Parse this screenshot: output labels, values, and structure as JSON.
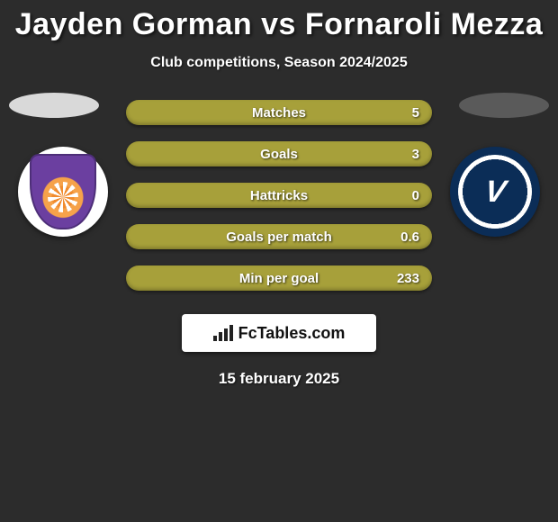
{
  "title": "Jayden Gorman vs Fornaroli Mezza",
  "subtitle": "Club competitions, Season 2024/2025",
  "date": "15 february 2025",
  "footer_brand": "FcTables.com",
  "colors": {
    "background": "#2c2c2c",
    "bar": "#a7a03a",
    "text": "#ffffff",
    "left_silhouette": "#d9d9d9",
    "right_silhouette": "#5a5a5a",
    "right_badge_bg": "#0b2d57",
    "left_badge_primary": "#6b3fa0",
    "left_badge_accent": "#f6a24a"
  },
  "stats": [
    {
      "label": "Matches",
      "value": "5"
    },
    {
      "label": "Goals",
      "value": "3"
    },
    {
      "label": "Hattricks",
      "value": "0"
    },
    {
      "label": "Goals per match",
      "value": "0.6"
    },
    {
      "label": "Min per goal",
      "value": "233"
    }
  ]
}
